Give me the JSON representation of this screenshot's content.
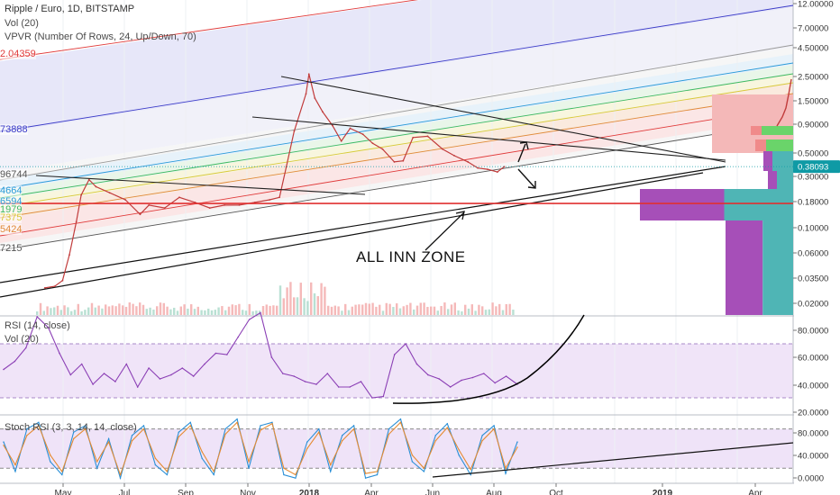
{
  "header": {
    "symbol_line": "Ripple / Euro, 1D, BITSTAMP",
    "vol_label": "Vol (20)",
    "vpvr_label": "VPVR (Number Of Rows, 24, Up/Down, 70)"
  },
  "annotation": "ALL INN ZONE",
  "colors": {
    "background": "#ffffff",
    "price_line": "#c13b3b",
    "rsi_line": "#8b3fb5",
    "rsi_band": "#e9d9f5",
    "stoch_k": "#2a8fd6",
    "stoch_d": "#e58b33",
    "support_line": "#e03030",
    "current_price_badge": "#0f9aa5",
    "vpvr_up": "#4fb5b5",
    "vpvr_down": "#a64fb8",
    "vpvr_green": "#6ad46a",
    "vpvr_pink": "#f08a8a"
  },
  "fib_labels": [
    "2.04359",
    "73888",
    "96744",
    "4664",
    "6594",
    "1979",
    "7375",
    "5424",
    "7215"
  ],
  "chart_data": [
    {
      "id": "price",
      "type": "line",
      "scale": "log",
      "title": "Ripple / Euro, 1D, BITSTAMP",
      "yticks": [
        "12.00000",
        "7.00000",
        "4.50000",
        "2.50000",
        "1.50000",
        "0.90000",
        "0.50000",
        "0.30000",
        "0.18000",
        "0.10000",
        "0.06000",
        "0.03500",
        "0.02000"
      ],
      "ylim": [
        0.017,
        12.5
      ],
      "current_price": "0.38093",
      "support_level": 0.176,
      "xticks": [
        "May",
        "Jul",
        "Sep",
        "Nov",
        "2018",
        "Apr",
        "Jun",
        "Aug",
        "Oct",
        "2019",
        "Apr"
      ],
      "series": [
        {
          "x": [
            "2017-04-10",
            "2017-04-20",
            "2017-04-28",
            "2017-05-05",
            "2017-05-12",
            "2017-05-17",
            "2017-05-25",
            "2017-06-01",
            "2017-06-15",
            "2017-07-01",
            "2017-07-16",
            "2017-07-25",
            "2017-08-10",
            "2017-08-25",
            "2017-09-10",
            "2017-09-25",
            "2017-10-10",
            "2017-10-25",
            "2017-11-10",
            "2017-11-25",
            "2017-12-05",
            "2017-12-12",
            "2017-12-20",
            "2018-01-01",
            "2018-01-04",
            "2018-01-10",
            "2018-01-18",
            "2018-01-28",
            "2018-02-06",
            "2018-02-15",
            "2018-02-28",
            "2018-03-10",
            "2018-03-20",
            "2018-04-01",
            "2018-04-10",
            "2018-04-20",
            "2018-05-05",
            "2018-05-20",
            "2018-06-01",
            "2018-06-15",
            "2018-06-25",
            "2018-07-05",
            "2018-07-15",
            "2018-07-22"
          ],
          "y": [
            0.03,
            0.031,
            0.035,
            0.06,
            0.12,
            0.21,
            0.29,
            0.25,
            0.22,
            0.19,
            0.14,
            0.17,
            0.16,
            0.2,
            0.18,
            0.16,
            0.17,
            0.17,
            0.18,
            0.19,
            0.2,
            0.38,
            0.8,
            1.75,
            2.65,
            1.6,
            1.2,
            0.9,
            0.65,
            0.85,
            0.75,
            0.62,
            0.55,
            0.42,
            0.43,
            0.7,
            0.72,
            0.55,
            0.48,
            0.42,
            0.37,
            0.36,
            0.34,
            0.38
          ]
        }
      ]
    },
    {
      "id": "rsi",
      "type": "line",
      "title": "RSI (14, close)",
      "subtitle": "Vol (20)",
      "yticks": [
        "80.0000",
        "60.0000",
        "40.0000",
        "20.0000"
      ],
      "ylim": [
        18,
        90
      ],
      "bands": [
        30,
        70
      ],
      "values": [
        51,
        57,
        67,
        90,
        82,
        63,
        47,
        55,
        40,
        48,
        42,
        55,
        38,
        52,
        44,
        47,
        52,
        46,
        55,
        63,
        62,
        75,
        88,
        93,
        60,
        48,
        46,
        42,
        40,
        48,
        38,
        38,
        42,
        30,
        31,
        62,
        70,
        55,
        47,
        44,
        38,
        43,
        45,
        48,
        41,
        46,
        40
      ]
    },
    {
      "id": "stoch",
      "type": "line",
      "title": "Stoch RSI (3, 3, 14, 14, close)",
      "yticks": [
        "80.0000",
        "40.0000",
        "0.0000"
      ],
      "ylim": [
        -3,
        100
      ],
      "bands": [
        20,
        80
      ],
      "series": [
        {
          "values": [
            60,
            15,
            80,
            90,
            30,
            10,
            75,
            85,
            20,
            65,
            5,
            70,
            85,
            25,
            10,
            75,
            90,
            35,
            10,
            80,
            95,
            20,
            85,
            90,
            10,
            5,
            60,
            80,
            15,
            70,
            85,
            5,
            10,
            80,
            95,
            30,
            15,
            70,
            88,
            40,
            10,
            70,
            85,
            12,
            60
          ]
        },
        {
          "values": [
            55,
            25,
            70,
            85,
            40,
            15,
            65,
            80,
            30,
            60,
            10,
            62,
            80,
            35,
            15,
            68,
            85,
            45,
            15,
            72,
            90,
            30,
            78,
            88,
            20,
            10,
            50,
            75,
            25,
            62,
            80,
            12,
            15,
            72,
            90,
            40,
            20,
            62,
            82,
            48,
            18,
            62,
            80,
            20,
            52
          ]
        }
      ]
    }
  ]
}
